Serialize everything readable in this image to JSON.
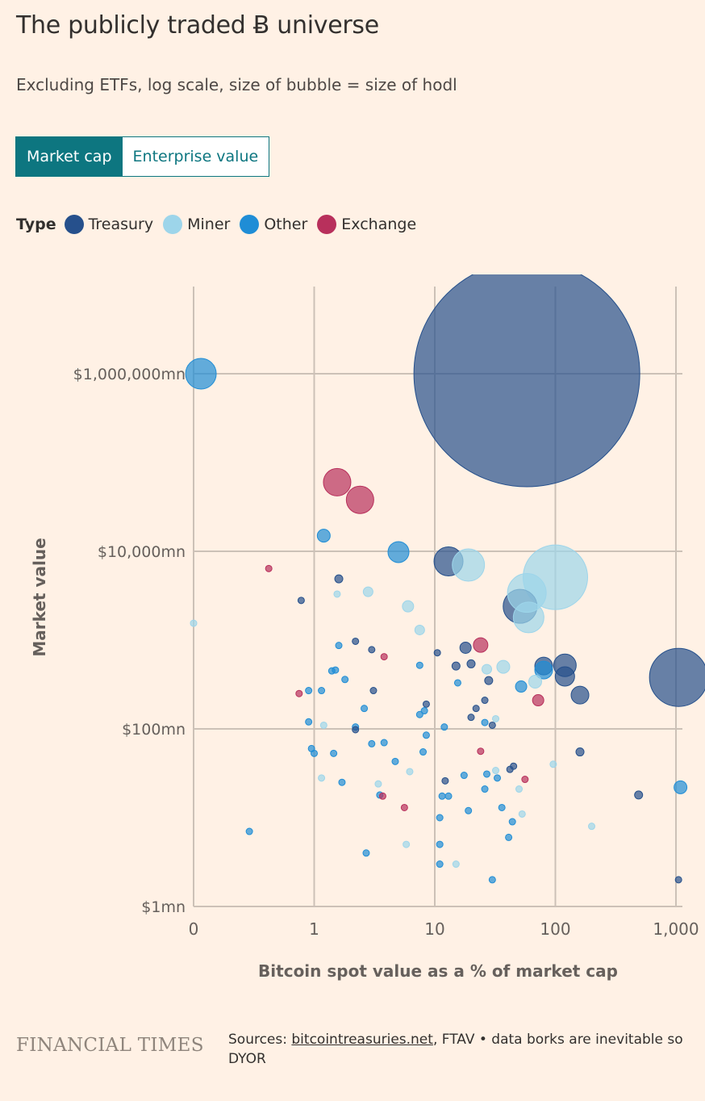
{
  "title": "The publicly traded Ƀ universe",
  "subtitle": "Excluding ETFs, log scale, size of bubble = size of hodl",
  "toggle": {
    "market_cap": "Market cap",
    "enterprise_value": "Enterprise value"
  },
  "legend": {
    "title": "Type",
    "items": [
      {
        "label": "Treasury",
        "color": "#26508c"
      },
      {
        "label": "Miner",
        "color": "#9dd5ea"
      },
      {
        "label": "Other",
        "color": "#1f8dd6"
      },
      {
        "label": "Exchange",
        "color": "#b8305c"
      }
    ]
  },
  "footer": {
    "logo": "FINANCIAL TIMES",
    "sources_prefix": "Sources: ",
    "sources_link": "bitcointreasuries.net",
    "sources_rest": ", FTAV • data borks are inevitable so DYOR"
  },
  "chart_data": {
    "type": "scatter",
    "xlabel": "Bitcoin spot value as a % of market cap",
    "ylabel": "Market value",
    "x_scale": "log",
    "y_scale": "log",
    "x_ticks": [
      {
        "value": 0.1,
        "label": "0"
      },
      {
        "value": 1,
        "label": "1"
      },
      {
        "value": 10,
        "label": "10"
      },
      {
        "value": 100,
        "label": "100"
      },
      {
        "value": 1000,
        "label": "1,000"
      }
    ],
    "y_ticks": [
      {
        "value": 1,
        "label": "$1mn"
      },
      {
        "value": 100,
        "label": "$100mn"
      },
      {
        "value": 10000,
        "label": "$10,000mn"
      },
      {
        "value": 1000000,
        "label": "$1,000,000mn"
      }
    ],
    "xlim": [
      0.1,
      1100
    ],
    "ylim": [
      1,
      10000000
    ],
    "grid": true,
    "colors": {
      "Treasury": "#26508c",
      "Miner": "#9dd5ea",
      "Other": "#1f8dd6",
      "Exchange": "#b8305c"
    },
    "points": [
      {
        "x": 58,
        "y": 1000000,
        "size": 140,
        "type": "Treasury"
      },
      {
        "x": 0.115,
        "y": 1000000,
        "size": 19,
        "type": "Other"
      },
      {
        "x": 1050,
        "y": 380,
        "size": 36,
        "type": "Treasury"
      },
      {
        "x": 100,
        "y": 5100,
        "size": 40,
        "type": "Miner"
      },
      {
        "x": 1.55,
        "y": 60000,
        "size": 17,
        "type": "Exchange"
      },
      {
        "x": 2.4,
        "y": 38000,
        "size": 17,
        "type": "Exchange"
      },
      {
        "x": 13,
        "y": 7700,
        "size": 18,
        "type": "Treasury"
      },
      {
        "x": 19,
        "y": 7000,
        "size": 20,
        "type": "Miner"
      },
      {
        "x": 51,
        "y": 2400,
        "size": 21,
        "type": "Treasury"
      },
      {
        "x": 58,
        "y": 3400,
        "size": 24,
        "type": "Miner"
      },
      {
        "x": 60,
        "y": 1800,
        "size": 19,
        "type": "Miner"
      },
      {
        "x": 5,
        "y": 9800,
        "size": 13,
        "type": "Other"
      },
      {
        "x": 1.2,
        "y": 15000,
        "size": 8,
        "type": "Other"
      },
      {
        "x": 120,
        "y": 520,
        "size": 14,
        "type": "Treasury"
      },
      {
        "x": 120,
        "y": 390,
        "size": 12,
        "type": "Treasury"
      },
      {
        "x": 80,
        "y": 510,
        "size": 11,
        "type": "Treasury"
      },
      {
        "x": 80,
        "y": 460,
        "size": 11,
        "type": "Other"
      },
      {
        "x": 160,
        "y": 240,
        "size": 11,
        "type": "Treasury"
      },
      {
        "x": 24,
        "y": 880,
        "size": 9,
        "type": "Exchange"
      },
      {
        "x": 18,
        "y": 820,
        "size": 7,
        "type": "Treasury"
      },
      {
        "x": 37,
        "y": 500,
        "size": 8,
        "type": "Miner"
      },
      {
        "x": 68,
        "y": 340,
        "size": 8,
        "type": "Miner"
      },
      {
        "x": 52,
        "y": 300,
        "size": 7,
        "type": "Other"
      },
      {
        "x": 72,
        "y": 210,
        "size": 7,
        "type": "Exchange"
      },
      {
        "x": 6,
        "y": 2400,
        "size": 7,
        "type": "Miner"
      },
      {
        "x": 7.5,
        "y": 1300,
        "size": 6,
        "type": "Miner"
      },
      {
        "x": 2.8,
        "y": 3500,
        "size": 6,
        "type": "Miner"
      },
      {
        "x": 1.6,
        "y": 4900,
        "size": 5,
        "type": "Treasury"
      },
      {
        "x": 0.42,
        "y": 6400,
        "size": 4,
        "type": "Exchange"
      },
      {
        "x": 0.78,
        "y": 2800,
        "size": 4,
        "type": "Treasury"
      },
      {
        "x": 1.55,
        "y": 3300,
        "size": 4,
        "type": "Miner"
      },
      {
        "x": 0.1,
        "y": 1550,
        "size": 4,
        "type": "Miner"
      },
      {
        "x": 20,
        "y": 540,
        "size": 5,
        "type": "Treasury"
      },
      {
        "x": 15,
        "y": 510,
        "size": 5,
        "type": "Treasury"
      },
      {
        "x": 27,
        "y": 470,
        "size": 6,
        "type": "Miner"
      },
      {
        "x": 28,
        "y": 350,
        "size": 5,
        "type": "Treasury"
      },
      {
        "x": 26,
        "y": 210,
        "size": 4,
        "type": "Treasury"
      },
      {
        "x": 22,
        "y": 170,
        "size": 4,
        "type": "Treasury"
      },
      {
        "x": 20,
        "y": 135,
        "size": 4,
        "type": "Treasury"
      },
      {
        "x": 26,
        "y": 118,
        "size": 4,
        "type": "Other"
      },
      {
        "x": 30,
        "y": 110,
        "size": 4,
        "type": "Treasury"
      },
      {
        "x": 32,
        "y": 130,
        "size": 4,
        "type": "Miner"
      },
      {
        "x": 15.5,
        "y": 330,
        "size": 4,
        "type": "Other"
      },
      {
        "x": 10.5,
        "y": 720,
        "size": 4,
        "type": "Treasury"
      },
      {
        "x": 3,
        "y": 780,
        "size": 4,
        "type": "Treasury"
      },
      {
        "x": 3.8,
        "y": 650,
        "size": 4,
        "type": "Exchange"
      },
      {
        "x": 2.2,
        "y": 970,
        "size": 4,
        "type": "Treasury"
      },
      {
        "x": 1.6,
        "y": 870,
        "size": 4,
        "type": "Other"
      },
      {
        "x": 1.5,
        "y": 460,
        "size": 4,
        "type": "Other"
      },
      {
        "x": 1.4,
        "y": 450,
        "size": 4,
        "type": "Other"
      },
      {
        "x": 1.8,
        "y": 360,
        "size": 4,
        "type": "Other"
      },
      {
        "x": 3.1,
        "y": 270,
        "size": 4,
        "type": "Treasury"
      },
      {
        "x": 1.15,
        "y": 270,
        "size": 4,
        "type": "Other"
      },
      {
        "x": 0.9,
        "y": 270,
        "size": 4,
        "type": "Other"
      },
      {
        "x": 0.75,
        "y": 250,
        "size": 4,
        "type": "Exchange"
      },
      {
        "x": 7.5,
        "y": 520,
        "size": 4,
        "type": "Other"
      },
      {
        "x": 8.5,
        "y": 190,
        "size": 4,
        "type": "Treasury"
      },
      {
        "x": 8.2,
        "y": 160,
        "size": 4,
        "type": "Other"
      },
      {
        "x": 7.5,
        "y": 145,
        "size": 4,
        "type": "Other"
      },
      {
        "x": 2.6,
        "y": 170,
        "size": 4,
        "type": "Other"
      },
      {
        "x": 0.9,
        "y": 120,
        "size": 4,
        "type": "Other"
      },
      {
        "x": 1.2,
        "y": 110,
        "size": 4,
        "type": "Miner"
      },
      {
        "x": 2.2,
        "y": 105,
        "size": 4,
        "type": "Other"
      },
      {
        "x": 2.2,
        "y": 98,
        "size": 4,
        "type": "Treasury"
      },
      {
        "x": 3.0,
        "y": 68,
        "size": 4,
        "type": "Other"
      },
      {
        "x": 3.8,
        "y": 70,
        "size": 4,
        "type": "Other"
      },
      {
        "x": 0.95,
        "y": 60,
        "size": 4,
        "type": "Other"
      },
      {
        "x": 1.0,
        "y": 53,
        "size": 4,
        "type": "Other"
      },
      {
        "x": 1.45,
        "y": 53,
        "size": 4,
        "type": "Other"
      },
      {
        "x": 4.7,
        "y": 43,
        "size": 4,
        "type": "Other"
      },
      {
        "x": 6.2,
        "y": 33,
        "size": 4,
        "type": "Miner"
      },
      {
        "x": 8.0,
        "y": 55,
        "size": 4,
        "type": "Other"
      },
      {
        "x": 8.5,
        "y": 85,
        "size": 4,
        "type": "Other"
      },
      {
        "x": 12,
        "y": 105,
        "size": 4,
        "type": "Other"
      },
      {
        "x": 24,
        "y": 56,
        "size": 4,
        "type": "Exchange"
      },
      {
        "x": 1.15,
        "y": 28,
        "size": 4,
        "type": "Miner"
      },
      {
        "x": 1.7,
        "y": 25,
        "size": 4,
        "type": "Other"
      },
      {
        "x": 3.4,
        "y": 24,
        "size": 4,
        "type": "Miner"
      },
      {
        "x": 3.5,
        "y": 18,
        "size": 4,
        "type": "Other"
      },
      {
        "x": 3.7,
        "y": 17.5,
        "size": 4,
        "type": "Exchange"
      },
      {
        "x": 5.6,
        "y": 13,
        "size": 4,
        "type": "Exchange"
      },
      {
        "x": 11.5,
        "y": 17.5,
        "size": 4,
        "type": "Other"
      },
      {
        "x": 13,
        "y": 17.5,
        "size": 4,
        "type": "Other"
      },
      {
        "x": 12.2,
        "y": 26,
        "size": 4,
        "type": "Treasury"
      },
      {
        "x": 17.5,
        "y": 30,
        "size": 4,
        "type": "Other"
      },
      {
        "x": 19,
        "y": 12,
        "size": 4,
        "type": "Other"
      },
      {
        "x": 27,
        "y": 31,
        "size": 4,
        "type": "Other"
      },
      {
        "x": 26,
        "y": 21,
        "size": 4,
        "type": "Other"
      },
      {
        "x": 32,
        "y": 34,
        "size": 4,
        "type": "Miner"
      },
      {
        "x": 33,
        "y": 28,
        "size": 4,
        "type": "Other"
      },
      {
        "x": 42,
        "y": 35,
        "size": 4,
        "type": "Treasury"
      },
      {
        "x": 45,
        "y": 38,
        "size": 4,
        "type": "Treasury"
      },
      {
        "x": 50,
        "y": 21,
        "size": 4,
        "type": "Miner"
      },
      {
        "x": 56,
        "y": 27,
        "size": 4,
        "type": "Exchange"
      },
      {
        "x": 36,
        "y": 13,
        "size": 4,
        "type": "Other"
      },
      {
        "x": 44,
        "y": 9,
        "size": 4,
        "type": "Other"
      },
      {
        "x": 53,
        "y": 11,
        "size": 4,
        "type": "Miner"
      },
      {
        "x": 41,
        "y": 6,
        "size": 4,
        "type": "Other"
      },
      {
        "x": 96,
        "y": 40,
        "size": 4,
        "type": "Miner"
      },
      {
        "x": 160,
        "y": 55,
        "size": 5,
        "type": "Treasury"
      },
      {
        "x": 200,
        "y": 8,
        "size": 4,
        "type": "Miner"
      },
      {
        "x": 490,
        "y": 18,
        "size": 5,
        "type": "Treasury"
      },
      {
        "x": 1090,
        "y": 22,
        "size": 8,
        "type": "Other"
      },
      {
        "x": 1050,
        "y": 2,
        "size": 4,
        "type": "Treasury"
      },
      {
        "x": 0.29,
        "y": 7,
        "size": 4,
        "type": "Other"
      },
      {
        "x": 2.7,
        "y": 4,
        "size": 4,
        "type": "Other"
      },
      {
        "x": 5.8,
        "y": 5,
        "size": 4,
        "type": "Miner"
      },
      {
        "x": 11,
        "y": 10,
        "size": 4,
        "type": "Other"
      },
      {
        "x": 11,
        "y": 5,
        "size": 4,
        "type": "Other"
      },
      {
        "x": 11,
        "y": 3,
        "size": 4,
        "type": "Other"
      },
      {
        "x": 15,
        "y": 3,
        "size": 4,
        "type": "Miner"
      },
      {
        "x": 30,
        "y": 2,
        "size": 4,
        "type": "Other"
      }
    ]
  }
}
